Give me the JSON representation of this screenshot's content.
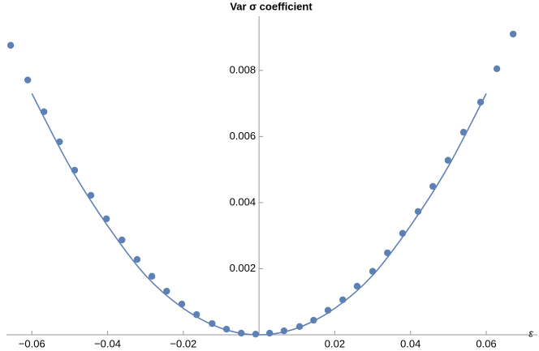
{
  "chart_data": {
    "type": "scatter",
    "title": "Var σ coefficient",
    "x_label": "ε",
    "xlim": [
      -0.0667,
      0.0735
    ],
    "ylim": [
      0,
      0.00964
    ],
    "xticks": [
      {
        "value": -0.06,
        "label": "−0.06"
      },
      {
        "value": -0.04,
        "label": "−0.04"
      },
      {
        "value": -0.02,
        "label": "−0.02"
      },
      0.02,
      0.04,
      0.06
    ],
    "yticks": [
      0.002,
      0.004,
      0.006,
      0.008
    ],
    "series": [
      {
        "type": "scatter",
        "color": "#5e81b5",
        "x": [
          -0.0656,
          -0.0611,
          -0.0568,
          -0.0527,
          -0.0487,
          -0.0444,
          -0.0403,
          -0.0362,
          -0.0322,
          -0.0283,
          -0.0244,
          -0.0204,
          -0.0165,
          -0.0124,
          -0.0086,
          -0.0047,
          -0.0009,
          0.0028,
          0.0066,
          0.0107,
          0.0144,
          0.0182,
          0.0221,
          0.0259,
          0.03,
          0.0339,
          0.0379,
          0.042,
          0.0459,
          0.0499,
          0.054,
          0.0585,
          0.0628,
          0.0671
        ],
        "values": [
          0.00876,
          0.00771,
          0.00675,
          0.00584,
          0.00498,
          0.00422,
          0.00351,
          0.00287,
          0.00228,
          0.00177,
          0.00132,
          0.00093,
          0.00061,
          0.00034,
          0.00017,
          5e-05,
          2e-05,
          5e-05,
          0.00012,
          0.00025,
          0.00044,
          0.00074,
          0.00106,
          0.00147,
          0.00192,
          0.00248,
          0.00307,
          0.00373,
          0.00449,
          0.00528,
          0.00613,
          0.00704,
          0.00805,
          0.0091
        ]
      },
      {
        "type": "line",
        "color": "#5e81b5",
        "x": [
          -0.06,
          -0.05,
          -0.04,
          -0.03,
          -0.02,
          -0.01,
          0,
          0.01,
          0.02,
          0.03,
          0.04,
          0.05,
          0.06
        ],
        "values": [
          0.0073,
          0.0051,
          0.0033,
          0.0018,
          0.0008,
          0.0002,
          0.0,
          0.0002,
          0.0008,
          0.0018,
          0.0033,
          0.0051,
          0.0073
        ]
      }
    ]
  }
}
